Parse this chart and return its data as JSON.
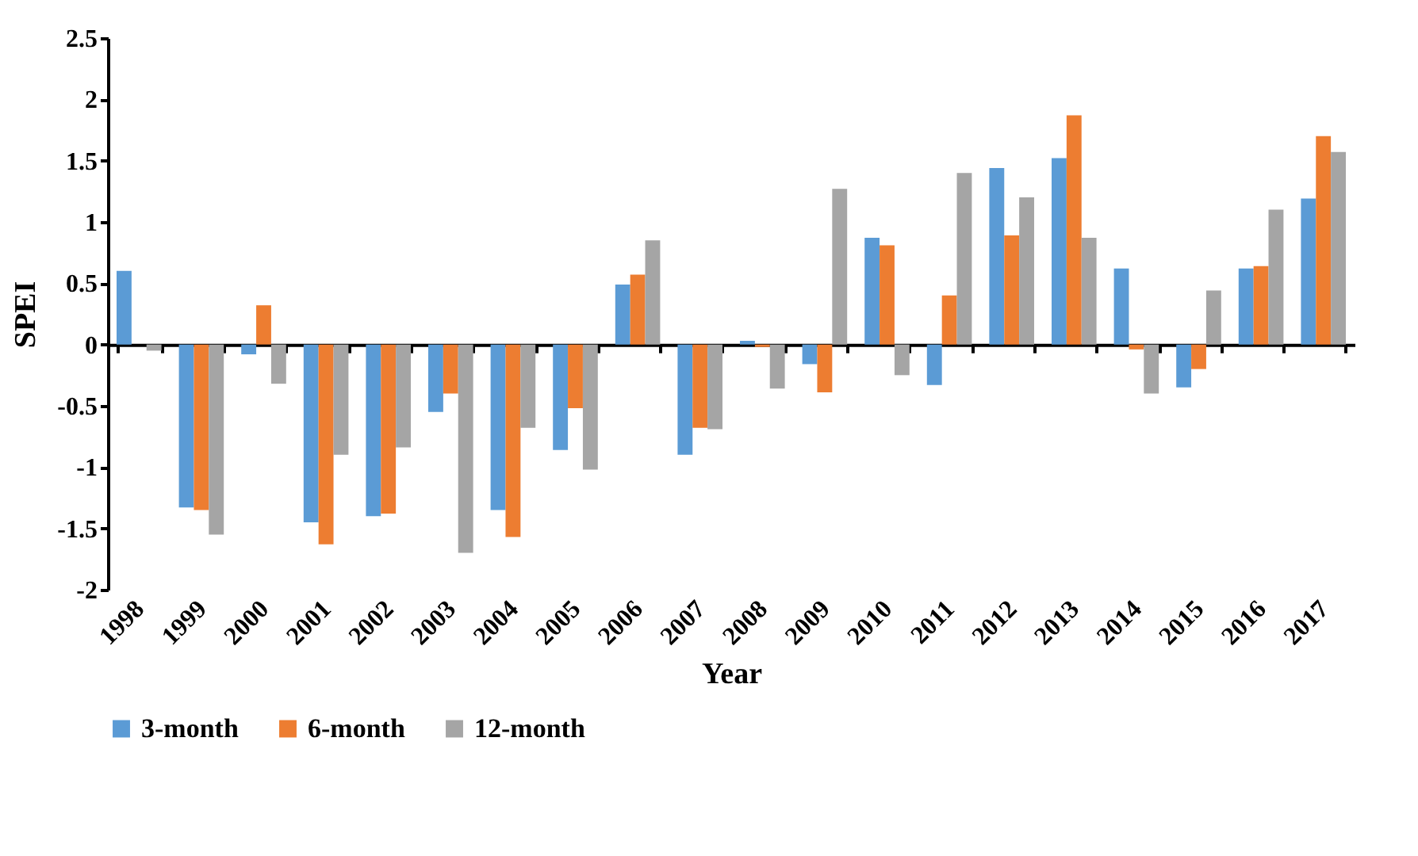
{
  "chart_data": {
    "type": "bar",
    "xlabel": "Year",
    "ylabel": "SPEI",
    "categories": [
      "1998",
      "1999",
      "2000",
      "2001",
      "2002",
      "2003",
      "2004",
      "2005",
      "2006",
      "2007",
      "2008",
      "2009",
      "2010",
      "2011",
      "2012",
      "2013",
      "2014",
      "2015",
      "2016",
      "2017"
    ],
    "series": [
      {
        "name": "3-month",
        "color": "#5b9bd5",
        "values": [
          0.6,
          -1.33,
          -0.08,
          -1.45,
          -1.4,
          -0.55,
          -1.35,
          -0.86,
          0.49,
          -0.9,
          0.03,
          -0.16,
          0.87,
          -0.33,
          1.44,
          1.52,
          0.62,
          -0.35,
          0.62,
          1.19
        ]
      },
      {
        "name": "6-month",
        "color": "#ed7d31",
        "values": [
          0,
          -1.35,
          0.32,
          -1.63,
          -1.38,
          -0.4,
          -1.57,
          -0.52,
          0.57,
          -0.68,
          -0.02,
          -0.39,
          0.81,
          0.4,
          0.89,
          1.87,
          -0.04,
          -0.2,
          0.64,
          1.7
        ]
      },
      {
        "name": "12-month",
        "color": "#a5a5a5",
        "values": [
          -0.05,
          -1.55,
          -0.32,
          -0.9,
          -0.84,
          -1.7,
          -0.68,
          -1.02,
          0.85,
          -0.69,
          -0.36,
          1.27,
          -0.25,
          1.4,
          1.2,
          0.87,
          -0.4,
          0.44,
          1.1,
          1.57
        ]
      }
    ],
    "ylim": [
      -2,
      2.5
    ],
    "yticks": [
      -2,
      -1.5,
      -1,
      -0.5,
      0,
      0.5,
      1,
      1.5,
      2,
      2.5
    ],
    "legend": "bottom"
  }
}
